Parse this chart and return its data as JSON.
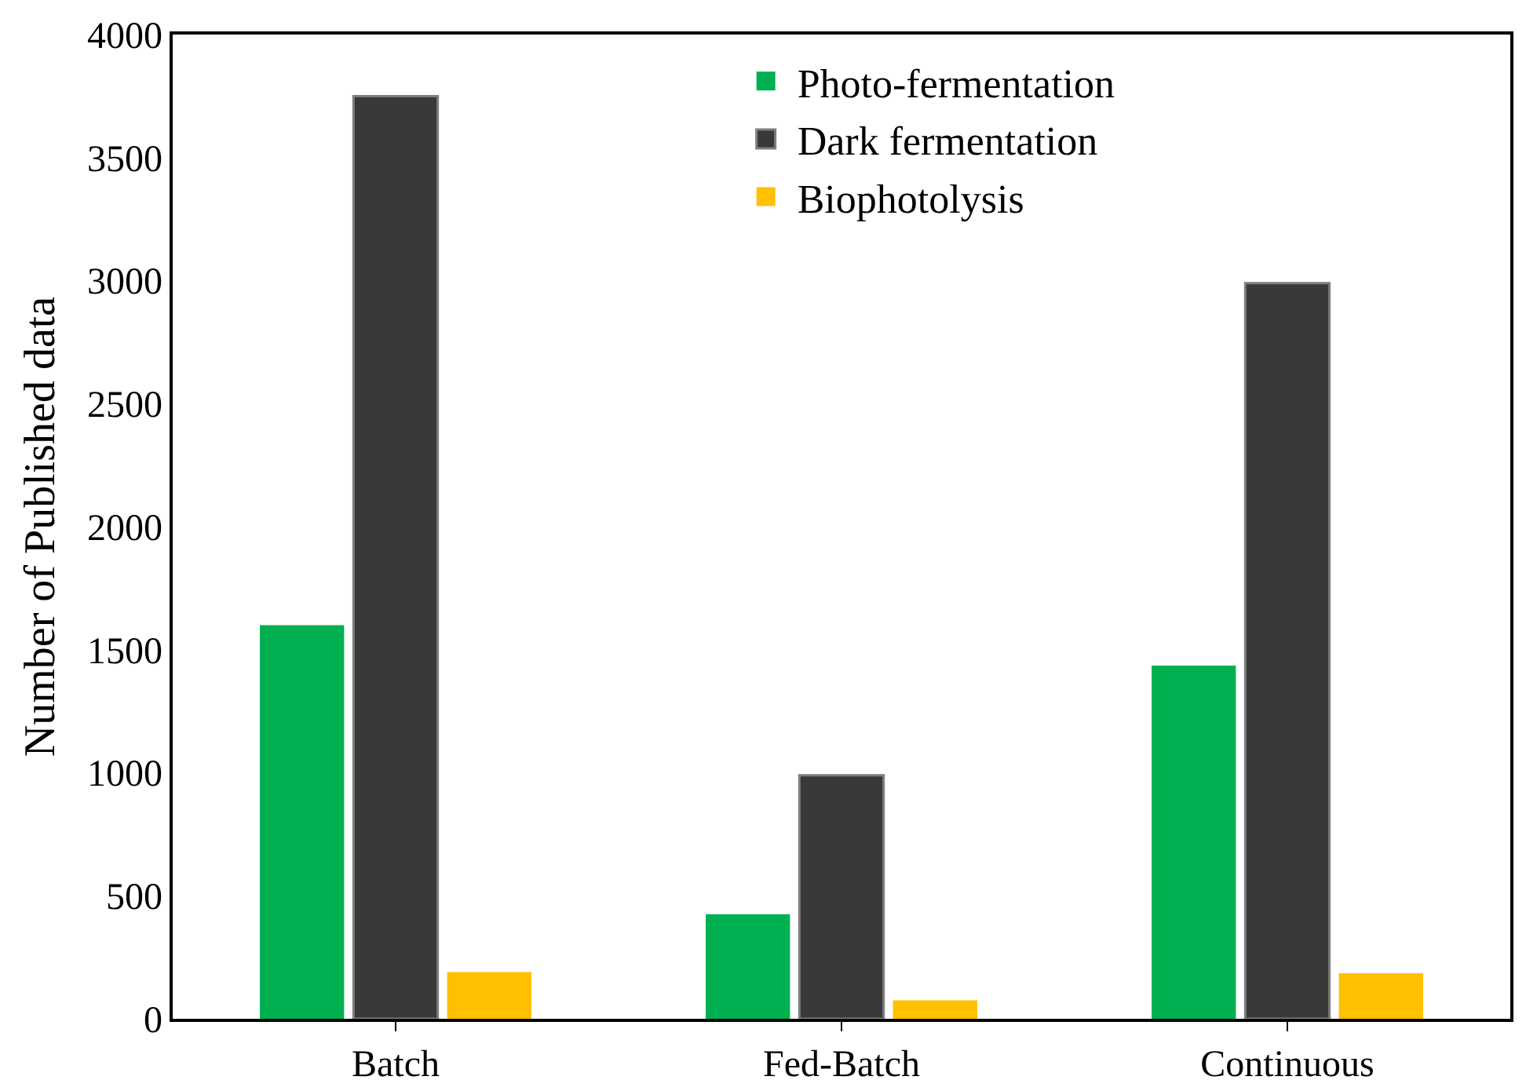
{
  "chart_data": {
    "type": "bar",
    "ylabel": "Number of Published data",
    "categories": [
      "Batch",
      "Fed-Batch",
      "Continuous"
    ],
    "series": [
      {
        "name": "Photo-fermentation",
        "color": "#00b050",
        "values": [
          1600,
          425,
          1435
        ]
      },
      {
        "name": "Dark fermentation",
        "color": "#3b3838",
        "values": [
          3750,
          990,
          2990
        ]
      },
      {
        "name": "Biophotolysis",
        "color": "#ffc000",
        "values": [
          190,
          75,
          185
        ]
      }
    ],
    "ylim": [
      0,
      4000
    ],
    "yticks": [
      0,
      500,
      1000,
      1500,
      2000,
      2500,
      3000,
      3500,
      4000
    ],
    "grid": false,
    "legend": "top"
  }
}
